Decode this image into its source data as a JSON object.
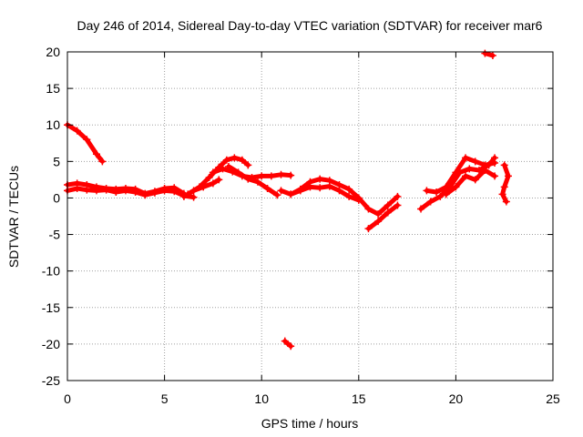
{
  "chart_data": {
    "type": "scatter",
    "title": "Day 246 of 2014, Sidereal Day-to-day VTEC variation (SDTVAR) for receiver mar6",
    "xlabel": "GPS time / hours",
    "ylabel": "SDTVAR / TECUs",
    "xlim": [
      0,
      25
    ],
    "ylim": [
      -25,
      20
    ],
    "xticks": [
      0,
      5,
      10,
      15,
      20,
      25
    ],
    "yticks": [
      20,
      15,
      10,
      5,
      0,
      -5,
      -10,
      -15,
      -20,
      -25
    ],
    "grid": true,
    "marker": "plus",
    "series_color": "#ff0000",
    "series": [
      {
        "name": "s1",
        "x": [
          0.0,
          0.5,
          1.0,
          1.5,
          1.8
        ],
        "y": [
          10.0,
          9.2,
          8.0,
          6.0,
          5.0
        ]
      },
      {
        "name": "s2",
        "x": [
          0.0,
          0.5,
          1.0,
          1.5,
          2.0,
          2.5,
          3.0,
          3.5,
          4.0,
          4.5,
          5.0,
          5.5,
          6.0
        ],
        "y": [
          1.8,
          2.0,
          1.8,
          1.5,
          1.3,
          1.2,
          1.3,
          1.2,
          0.6,
          0.9,
          1.3,
          1.4,
          0.6
        ]
      },
      {
        "name": "s3",
        "x": [
          0.0,
          0.5,
          1.0,
          1.5,
          2.0,
          2.5,
          3.0,
          3.5,
          4.0,
          4.5,
          5.0,
          5.5,
          6.0,
          6.5
        ],
        "y": [
          1.0,
          1.3,
          1.1,
          1.0,
          1.1,
          0.8,
          1.0,
          0.8,
          0.4,
          0.7,
          1.0,
          0.9,
          0.3,
          0.1
        ]
      },
      {
        "name": "s4",
        "x": [
          6.2,
          6.8,
          7.3,
          7.8,
          8.2,
          8.6,
          9.0,
          9.3
        ],
        "y": [
          0.5,
          1.5,
          2.8,
          4.2,
          5.2,
          5.5,
          5.2,
          4.5
        ]
      },
      {
        "name": "s5",
        "x": [
          7.5,
          8.0,
          8.5,
          9.0,
          9.5,
          10.0,
          10.5,
          11.0,
          11.5
        ],
        "y": [
          3.5,
          4.0,
          3.6,
          3.0,
          2.8,
          3.0,
          3.0,
          3.2,
          3.1
        ]
      },
      {
        "name": "s6",
        "x": [
          6.0,
          6.5,
          7.0,
          7.5,
          7.8
        ],
        "y": [
          0.2,
          1.0,
          1.5,
          2.0,
          2.5
        ]
      },
      {
        "name": "s7",
        "x": [
          8.3,
          8.8,
          9.3,
          9.8,
          10.3,
          10.8
        ],
        "y": [
          4.3,
          3.5,
          2.6,
          2.2,
          1.3,
          0.4
        ]
      },
      {
        "name": "s8",
        "x": [
          11.0,
          11.5,
          12.0,
          12.5,
          13.0,
          13.5,
          14.0,
          14.5,
          15.0,
          15.5,
          16.0,
          16.5,
          17.0
        ],
        "y": [
          1.0,
          0.5,
          1.2,
          2.2,
          2.6,
          2.4,
          1.8,
          1.2,
          0.0,
          -1.5,
          -2.2,
          -1.0,
          0.2
        ]
      },
      {
        "name": "s9",
        "x": [
          11.5,
          12.0,
          12.5,
          13.0,
          13.5,
          14.0,
          14.5,
          15.0
        ],
        "y": [
          0.5,
          1.0,
          1.5,
          1.4,
          1.6,
          1.0,
          0.2,
          -0.3
        ]
      },
      {
        "name": "s10",
        "x": [
          15.5,
          16.0,
          16.5,
          17.0
        ],
        "y": [
          -4.2,
          -3.2,
          -2.0,
          -1.0
        ]
      },
      {
        "name": "s11",
        "x": [
          18.2,
          18.7,
          19.2,
          19.7,
          20.2,
          20.7,
          21.2,
          21.7,
          22.0
        ],
        "y": [
          -1.5,
          -0.5,
          0.2,
          1.5,
          3.5,
          4.0,
          3.8,
          4.5,
          5.5
        ]
      },
      {
        "name": "s12",
        "x": [
          18.5,
          19.0,
          19.5,
          20.0,
          20.5,
          21.0,
          21.5,
          22.0
        ],
        "y": [
          1.0,
          0.8,
          1.5,
          3.5,
          5.5,
          5.0,
          4.5,
          4.8
        ]
      },
      {
        "name": "s13",
        "x": [
          19.5,
          20.0,
          20.5,
          21.0,
          21.5,
          22.0
        ],
        "y": [
          0.5,
          1.5,
          3.0,
          2.5,
          3.8,
          3.0
        ]
      },
      {
        "name": "s14",
        "x": [
          22.5,
          22.7,
          22.5,
          22.4,
          22.6
        ],
        "y": [
          4.5,
          3.0,
          1.5,
          0.5,
          -0.5
        ]
      },
      {
        "name": "s15",
        "x": [
          21.5,
          21.9
        ],
        "y": [
          19.8,
          19.5
        ]
      },
      {
        "name": "s16",
        "x": [
          11.2,
          11.5
        ],
        "y": [
          -19.6,
          -20.3
        ]
      }
    ]
  }
}
